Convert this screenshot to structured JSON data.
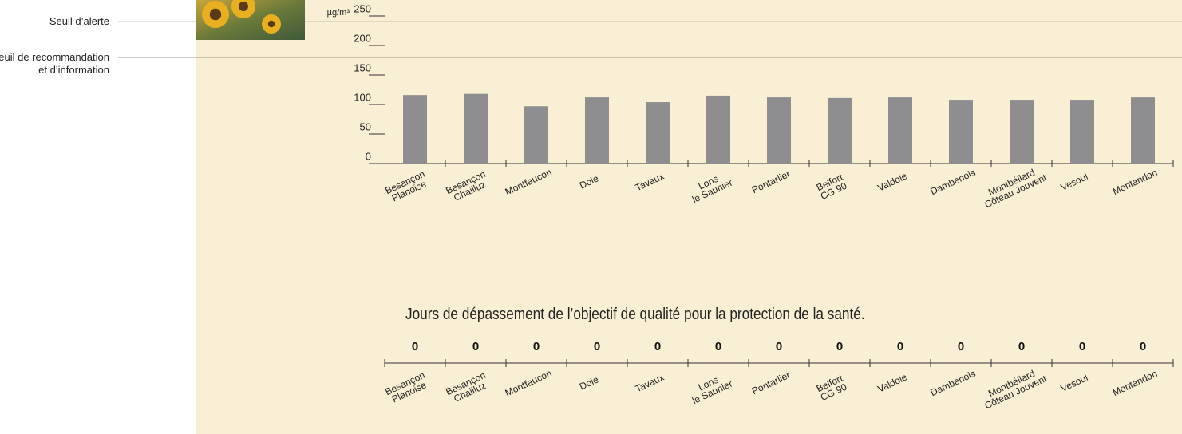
{
  "chart_data": [
    {
      "type": "bar",
      "y_unit": "µg/m³",
      "categories": [
        "Besançon\nPlanoise",
        "Besançon\nChailluz",
        "Montfaucon",
        "Dole",
        "Tavaux",
        "Lons\nle Saunier",
        "Pontarlier",
        "Belfort\nCG 90",
        "Valdoie",
        "Dambenois",
        "Montbéliard\nCôteau Jouvent",
        "Vesoul",
        "Montandon"
      ],
      "values": [
        116,
        118,
        97,
        112,
        104,
        115,
        112,
        111,
        112,
        108,
        108,
        108,
        112
      ],
      "color": "#8e8e91",
      "ylim": [
        0,
        250
      ],
      "yticks": [
        0,
        50,
        100,
        150,
        200,
        250
      ],
      "thresholds": [
        {
          "label": "Seuil d’alerte",
          "value": 240
        },
        {
          "label": "Seuil de recommandation et d’information",
          "value": 180
        }
      ]
    },
    {
      "type": "value-strip",
      "title": "Jours de dépassement de l’objectif de qualité pour la protection de la santé.",
      "categories": [
        "Besançon\nPlanoise",
        "Besançon\nChailluz",
        "Montfaucon",
        "Dole",
        "Tavaux",
        "Lons\nle Saunier",
        "Pontarlier",
        "Belfort\nCG 90",
        "Valdoie",
        "Dambenois",
        "Montbéliard\nCôteau Jouvent",
        "Vesoul",
        "Montandon"
      ],
      "values": [
        0,
        0,
        0,
        0,
        0,
        0,
        0,
        0,
        0,
        0,
        0,
        0,
        0
      ]
    }
  ]
}
